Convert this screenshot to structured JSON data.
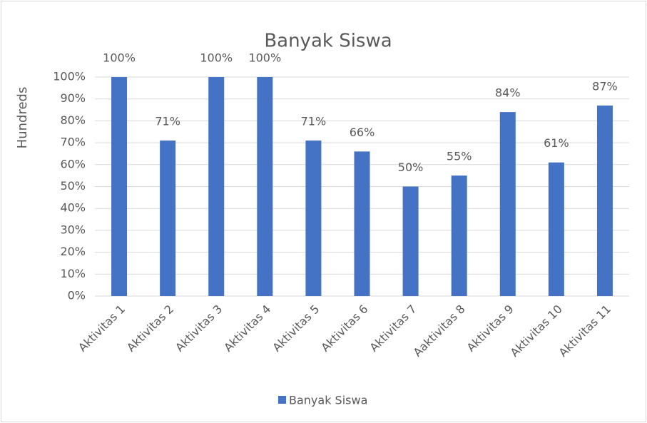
{
  "chart_data": {
    "type": "bar",
    "title": "Banyak Siswa",
    "y_axis_label": "Hundreds",
    "categories": [
      "Aktivitas 1",
      "Aktivitas 2",
      "Aktivitas 3",
      "Aktivitas 4",
      "Aktivitas 5",
      "Aktivitas 6",
      "Aktivitas 7",
      "Aaktivitas 8",
      "Aktivitas 9",
      "Aktivitas 10",
      "Aktivitas 11"
    ],
    "series": [
      {
        "name": "Banyak Siswa",
        "color": "#4472c4",
        "values": [
          100,
          71,
          100,
          100,
          71,
          66,
          50,
          55,
          84,
          61,
          87
        ],
        "value_labels": [
          "100%",
          "71%",
          "100%",
          "100%",
          "71%",
          "66%",
          "50%",
          "55%",
          "84%",
          "61%",
          "87%"
        ]
      }
    ],
    "ylim": [
      0,
      100
    ],
    "yticks": [
      {
        "value": 0,
        "label": "0%"
      },
      {
        "value": 10,
        "label": "10%"
      },
      {
        "value": 20,
        "label": "20%"
      },
      {
        "value": 30,
        "label": "30%"
      },
      {
        "value": 40,
        "label": "40%"
      },
      {
        "value": 50,
        "label": "50%"
      },
      {
        "value": 60,
        "label": "60%"
      },
      {
        "value": 70,
        "label": "70%"
      },
      {
        "value": 80,
        "label": "80%"
      },
      {
        "value": 90,
        "label": "90%"
      },
      {
        "value": 100,
        "label": "100%"
      }
    ],
    "grid": true,
    "legend": "bottom"
  }
}
